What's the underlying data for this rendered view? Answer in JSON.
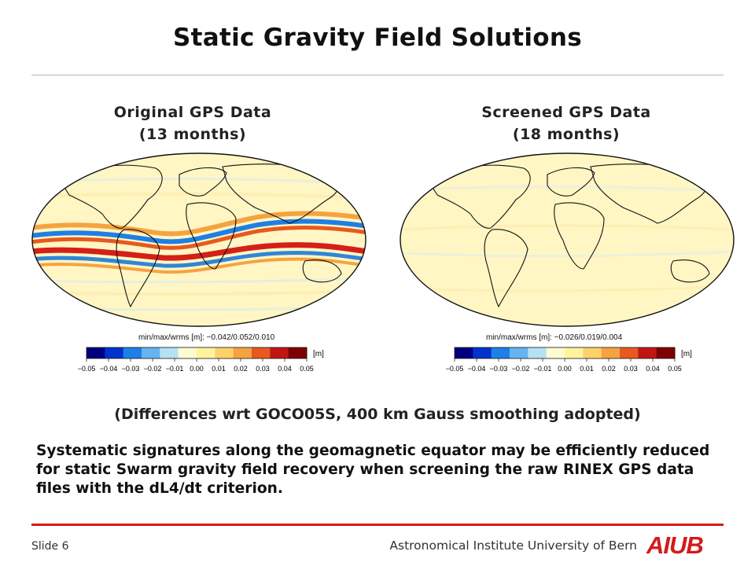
{
  "slide": {
    "title": "Static Gravity Field Solutions",
    "left_panel": {
      "title_line1": "Original GPS Data",
      "title_line2": "(13 months)",
      "stats": "min/max/wrms [m]: −0.042/0.052/0.010"
    },
    "right_panel": {
      "title_line1": "Screened GPS Data",
      "title_line2": "(18 months)",
      "stats": "min/max/wrms [m]: −0.026/0.019/0.004"
    },
    "colorbar": {
      "unit": "[m]",
      "ticks": [
        "−0.05",
        "−0.04",
        "−0.03",
        "−0.02",
        "−0.01",
        "0.00",
        "0.01",
        "0.02",
        "0.03",
        "0.04",
        "0.05"
      ],
      "colors": [
        "#00007f",
        "#0033cc",
        "#1e7fe6",
        "#66b3f0",
        "#b8e0f5",
        "#fffbd0",
        "#fff3a0",
        "#fcd36b",
        "#f5a340",
        "#e65a1f",
        "#c21513",
        "#7f0000"
      ]
    },
    "caption": "(Differences wrt GOCO05S, 400 km Gauss smoothing adopted)",
    "body": "Systematic signatures along the geomagnetic equator may be efficiently reduced for static Swarm gravity field recovery when screening the raw RINEX GPS data files with the dL4/dt criterion.",
    "footer": {
      "slide_label": "Slide 6",
      "institute": "Astronomical Institute University of Bern",
      "logo": "AIUB"
    }
  }
}
